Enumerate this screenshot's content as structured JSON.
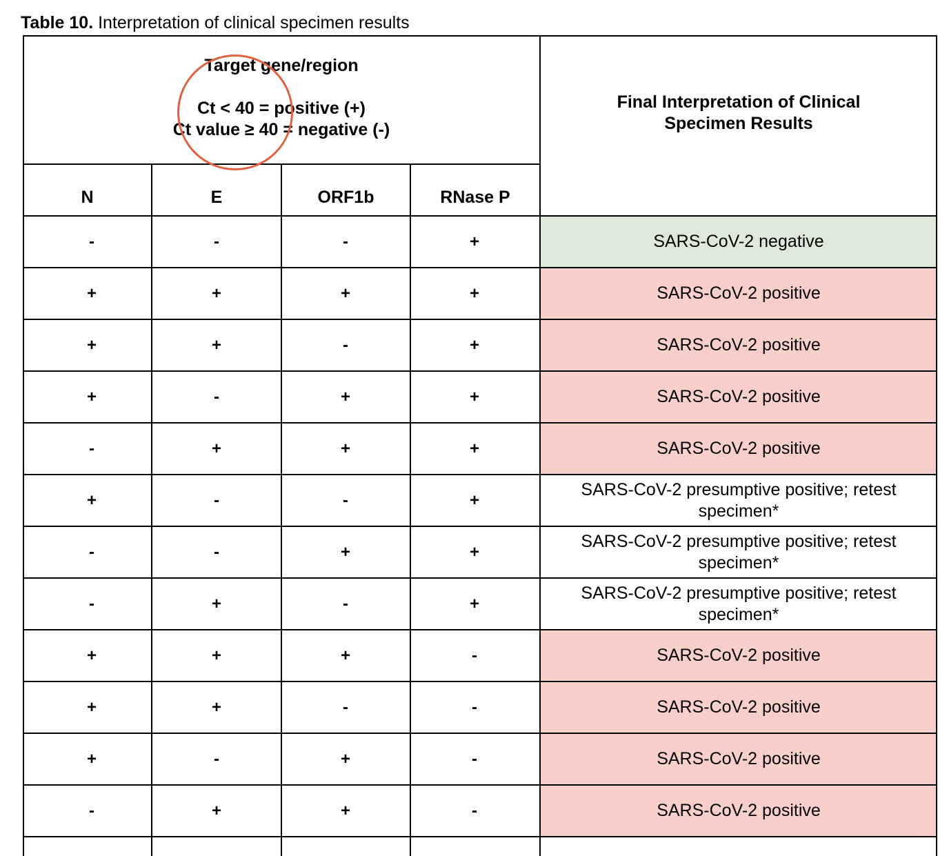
{
  "caption": {
    "label": "Table 10.",
    "text": " Interpretation of clinical specimen results"
  },
  "header": {
    "target_title": "Target gene/region",
    "rule_positive": "Ct < 40 = positive (+)",
    "rule_negative": "Ct value ≥ 40 = negative (-)",
    "final_title_line1": "Final Interpretation of Clinical",
    "final_title_line2": "Specimen Results",
    "columns": [
      "N",
      "E",
      "ORF1b",
      "RNase P"
    ]
  },
  "annotation": {
    "shape": "circle",
    "color": "#e0603f"
  },
  "colors": {
    "negative_fill": "#dfe9d9",
    "positive_fill": "#f9cfcb",
    "presumptive_fill": "#ffffff"
  },
  "rows": [
    {
      "N": "-",
      "E": "-",
      "ORF1b": "-",
      "RNaseP": "+",
      "result": "SARS-CoV-2 negative",
      "status": "negative"
    },
    {
      "N": "+",
      "E": "+",
      "ORF1b": "+",
      "RNaseP": "+",
      "result": "SARS-CoV-2 positive",
      "status": "positive"
    },
    {
      "N": "+",
      "E": "+",
      "ORF1b": "-",
      "RNaseP": "+",
      "result": "SARS-CoV-2 positive",
      "status": "positive"
    },
    {
      "N": "+",
      "E": "-",
      "ORF1b": "+",
      "RNaseP": "+",
      "result": "SARS-CoV-2 positive",
      "status": "positive"
    },
    {
      "N": "-",
      "E": "+",
      "ORF1b": "+",
      "RNaseP": "+",
      "result": "SARS-CoV-2 positive",
      "status": "positive"
    },
    {
      "N": "+",
      "E": "-",
      "ORF1b": "-",
      "RNaseP": "+",
      "result": "SARS-CoV-2 presumptive positive; retest specimen*",
      "status": "presumptive"
    },
    {
      "N": "-",
      "E": "-",
      "ORF1b": "+",
      "RNaseP": "+",
      "result": "SARS-CoV-2 presumptive positive; retest specimen*",
      "status": "presumptive"
    },
    {
      "N": "-",
      "E": "+",
      "ORF1b": "-",
      "RNaseP": "+",
      "result": "SARS-CoV-2 presumptive positive; retest specimen*",
      "status": "presumptive"
    },
    {
      "N": "+",
      "E": "+",
      "ORF1b": "+",
      "RNaseP": "-",
      "result": "SARS-CoV-2 positive",
      "status": "positive"
    },
    {
      "N": "+",
      "E": "+",
      "ORF1b": "-",
      "RNaseP": "-",
      "result": "SARS-CoV-2 positive",
      "status": "positive"
    },
    {
      "N": "+",
      "E": "-",
      "ORF1b": "+",
      "RNaseP": "-",
      "result": "SARS-CoV-2 positive",
      "status": "positive"
    },
    {
      "N": "-",
      "E": "+",
      "ORF1b": "+",
      "RNaseP": "-",
      "result": "SARS-CoV-2 positive",
      "status": "positive"
    }
  ]
}
